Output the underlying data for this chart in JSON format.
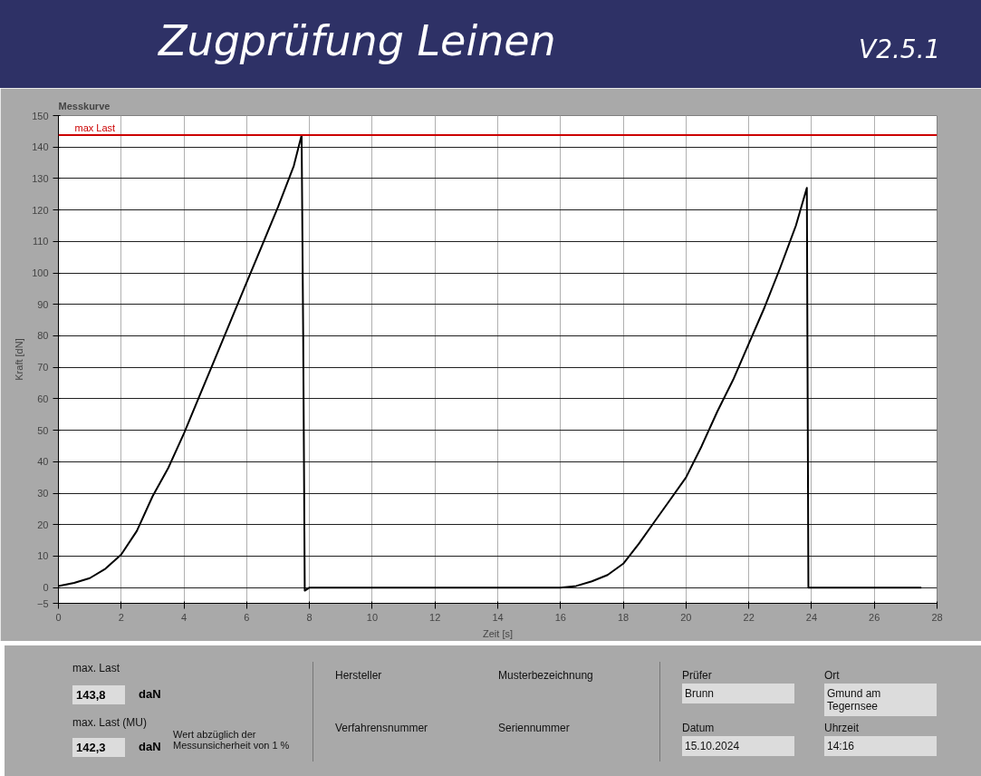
{
  "chart_data": {
    "type": "line",
    "title": "Zugprüfung Leinen",
    "subtitle": "Messkurve",
    "xlabel": "Zeit [s]",
    "ylabel": "Kraft [dN]",
    "series": [
      {
        "color": "#000000",
        "x": [
          0,
          0.5,
          1,
          1.5,
          2,
          2.5,
          3,
          3.5,
          4,
          4.5,
          5,
          5.5,
          6,
          6.5,
          7,
          7.5,
          7.75,
          7.8,
          7.85,
          8,
          10,
          12,
          14,
          16,
          16.5,
          17,
          17.5,
          18,
          18.5,
          19,
          19.5,
          20,
          20.5,
          21,
          21.5,
          22,
          22.5,
          23,
          23.5,
          23.85,
          23.9,
          24,
          26,
          27.5
        ],
        "values": [
          0.5,
          1.5,
          3,
          6,
          10.5,
          18,
          29,
          38,
          49,
          61,
          73,
          85,
          97,
          109,
          121,
          134,
          143.8,
          80,
          -1,
          0,
          0,
          0,
          0,
          0,
          0.5,
          2,
          4,
          7.6,
          14,
          21,
          28,
          35,
          45,
          56,
          66,
          77.5,
          89,
          101.6,
          115,
          127,
          0,
          0,
          0,
          0
        ]
      }
    ],
    "xlim": [
      0,
      28
    ],
    "xticks": [
      0,
      2,
      4,
      6,
      8,
      10,
      12,
      14,
      16,
      18,
      20,
      22,
      24,
      26,
      28
    ],
    "ylim": [
      -5,
      150
    ],
    "yticks": [
      -5,
      0,
      10,
      20,
      30,
      40,
      50,
      60,
      70,
      80,
      90,
      100,
      110,
      120,
      130,
      140,
      150
    ],
    "grid": true,
    "ref_lines": [
      {
        "axis": "y",
        "value": 143.8,
        "label": "max Last",
        "color": "#cc0000"
      }
    ],
    "annotations": [
      "V2.5.1",
      "max. Last",
      "143,8",
      "daN",
      "max. Last (MU)",
      "142,3",
      "daN",
      "Wert abzüglich der Messunsicherheit von 1 %",
      "Hersteller",
      "Musterbezeichnung",
      "Verfahrensnummer",
      "Seriennummer",
      "Prüfer",
      "Brunn",
      "Ort",
      "Gmund am Tegernsee",
      "Datum",
      "15.10.2024",
      "Uhrzeit",
      "14:16"
    ]
  }
}
